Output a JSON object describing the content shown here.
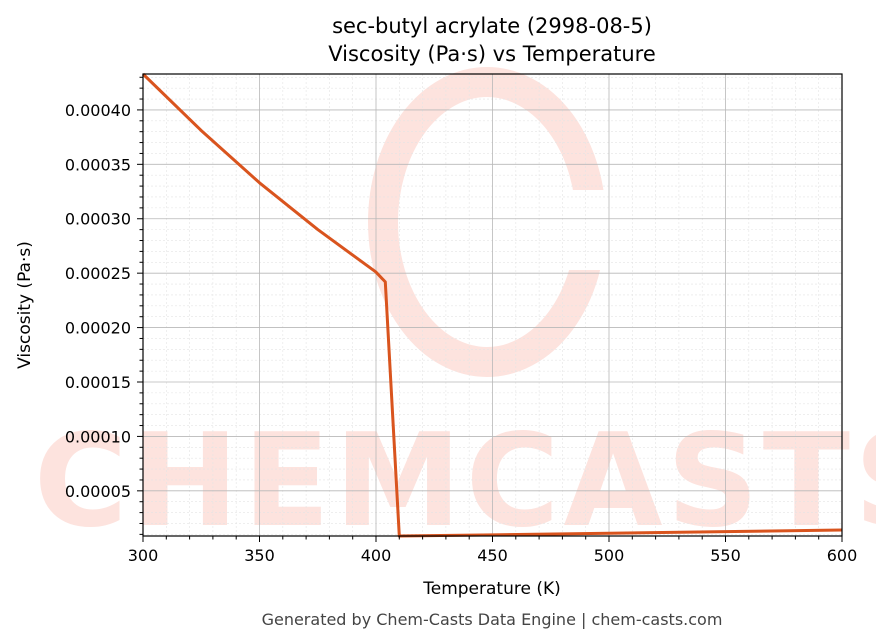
{
  "chart_data": {
    "type": "line",
    "title": "sec-butyl acrylate (2998-08-5)",
    "subtitle": "Viscosity (Pa·s) vs Temperature",
    "xlabel": "Temperature (K)",
    "ylabel": "Viscosity (Pa·s)",
    "xlim": [
      300,
      600
    ],
    "ylim": [
      8.5e-06,
      0.000433
    ],
    "x_ticks": [
      300,
      350,
      400,
      450,
      500,
      550,
      600
    ],
    "x_tick_labels": [
      "300",
      "350",
      "400",
      "450",
      "500",
      "550",
      "600"
    ],
    "y_ticks": [
      5e-05,
      0.0001,
      0.00015,
      0.0002,
      0.00025,
      0.0003,
      0.00035,
      0.0004
    ],
    "y_tick_labels": [
      "0.00005",
      "0.00010",
      "0.00015",
      "0.00020",
      "0.00025",
      "0.00030",
      "0.00035",
      "0.00040"
    ],
    "grid": true,
    "series": [
      {
        "color": "#d9541e",
        "x": [
          300,
          325,
          350,
          375,
          400,
          404,
          410,
          450,
          500,
          550,
          600
        ],
        "y": [
          0.000433,
          0.000381,
          0.000333,
          0.00029,
          0.000251,
          0.000242,
          8.5e-06,
          9.5e-06,
          1.1e-05,
          1.25e-05,
          1.4e-05
        ]
      }
    ]
  },
  "watermark": {
    "text": "CHEMCASTS",
    "color": "#fde3de"
  },
  "footer": "Generated by Chem-Casts Data Engine | chem-casts.com"
}
